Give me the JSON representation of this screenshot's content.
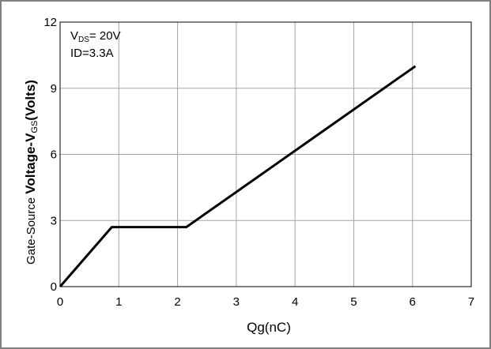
{
  "chart_data": {
    "type": "line",
    "title": "",
    "xlabel": "Qg(nC)",
    "ylabel": {
      "prefix_small": "Gate-Source ",
      "prefix_bold": "Voltage-V",
      "sub": "GS",
      "suffix": "(Volts)"
    },
    "xlim": [
      0,
      7
    ],
    "ylim": [
      0,
      12
    ],
    "x_ticks": [
      0,
      1,
      2,
      3,
      4,
      5,
      6,
      7
    ],
    "y_ticks": [
      0,
      3,
      6,
      9,
      12
    ],
    "grid": true,
    "annotations": {
      "vds": {
        "main": "V",
        "sub": "DS",
        "rest": "= 20V"
      },
      "id": "ID=3.3A"
    },
    "series": [
      {
        "x": [
          0,
          0.88,
          2.15,
          6.05
        ],
        "y": [
          0,
          2.7,
          2.7,
          10.0
        ]
      }
    ]
  },
  "colors": {
    "line": "#000000",
    "grid": "#a6a6a6",
    "frame": "#808080"
  }
}
